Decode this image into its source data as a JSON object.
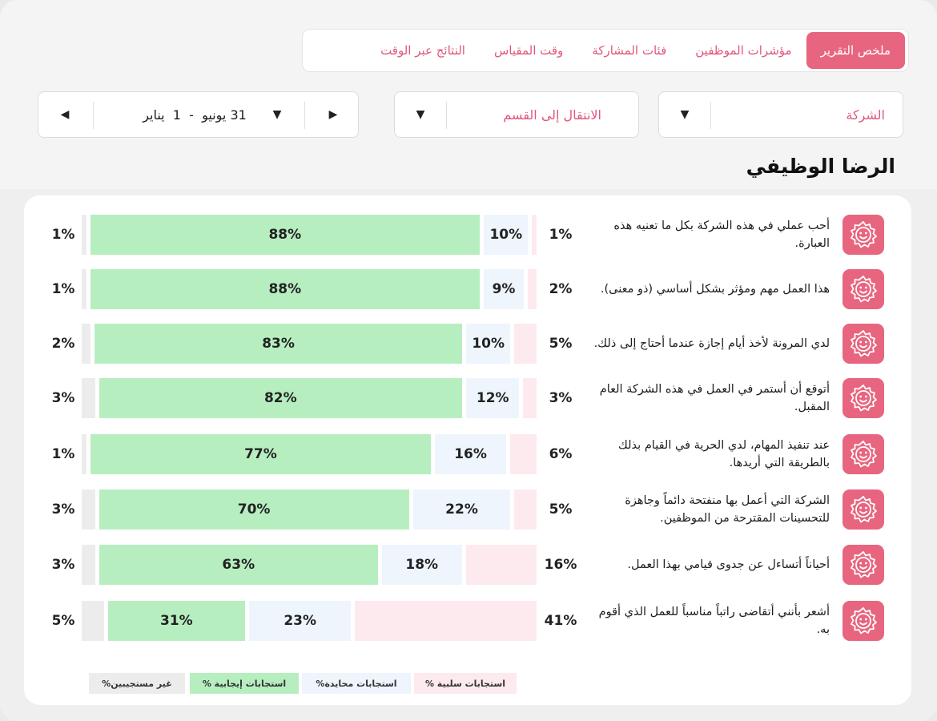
{
  "tabs": [
    {
      "label": "ملخص التقرير",
      "active": true
    },
    {
      "label": "مؤشرات الموظفين",
      "active": false
    },
    {
      "label": "فئات المشاركة",
      "active": false
    },
    {
      "label": "وقت المقياس",
      "active": false
    },
    {
      "label": "النتائج عبر الوقت",
      "active": false
    }
  ],
  "filters": {
    "company": "الشركة",
    "department": "الانتقال إلى القسم",
    "date_range": "31 يونيو  -  1  يناير"
  },
  "section_title": "الرضا الوظيفي",
  "rows": [
    {
      "statement": "أحب عملي في هذه الشركة بكل ما تعنيه هذه العبارة.",
      "negative": "1%",
      "neutral": "10%",
      "positive": "88%",
      "no_response": "1%"
    },
    {
      "statement": "هذا العمل مهم ومؤثر بشكل أساسي (ذو معنى).",
      "negative": "2%",
      "neutral": "9%",
      "positive": "88%",
      "no_response": "1%"
    },
    {
      "statement": "لدي المرونة لأخذ أيام إجازة عندما أحتاج إلى ذلك.",
      "negative": "5%",
      "neutral": "10%",
      "positive": "83%",
      "no_response": "2%"
    },
    {
      "statement": "أتوقع أن أستمر في العمل في هذه الشركة العام المقبل.",
      "negative": "3%",
      "neutral": "12%",
      "positive": "82%",
      "no_response": "3%"
    },
    {
      "statement": "عند تنفيذ المهام، لدي الحرية في القيام بذلك بالطريقة التي أريدها.",
      "negative": "6%",
      "neutral": "16%",
      "positive": "77%",
      "no_response": "1%"
    },
    {
      "statement": "الشركة التي أعمل بها منفتحة دائماً وجاهزة للتحسينات المقترحة من الموظفين.",
      "negative": "5%",
      "neutral": "22%",
      "positive": "70%",
      "no_response": "3%"
    },
    {
      "statement": "أحياناً أتساءل عن جدوى قيامي بهذا العمل.",
      "negative": "16%",
      "neutral": "18%",
      "positive": "63%",
      "no_response": "3%"
    },
    {
      "statement": "أشعر بأنني أتقاضى راتباً مناسباً للعمل الذي أقوم به.",
      "negative": "41%",
      "neutral": "23%",
      "positive": "31%",
      "no_response": "5%"
    }
  ],
  "legend": {
    "negative": "استجابات سلبية %",
    "neutral": "استجابات محايدة%",
    "positive": "استجابات إيجابية %",
    "no_response": "غير مستجيبين%"
  },
  "colors": {
    "accent": "#e8657f",
    "positive": "#b7eec0",
    "neutral": "#eef5fc",
    "negative": "#fdeaee",
    "no_response": "#ececec"
  },
  "icons": {
    "nav_prev": "triangle-left-icon",
    "nav_next": "triangle-right-icon",
    "dropdown": "triangle-down-icon",
    "statement": "smiley-gear-icon"
  }
}
